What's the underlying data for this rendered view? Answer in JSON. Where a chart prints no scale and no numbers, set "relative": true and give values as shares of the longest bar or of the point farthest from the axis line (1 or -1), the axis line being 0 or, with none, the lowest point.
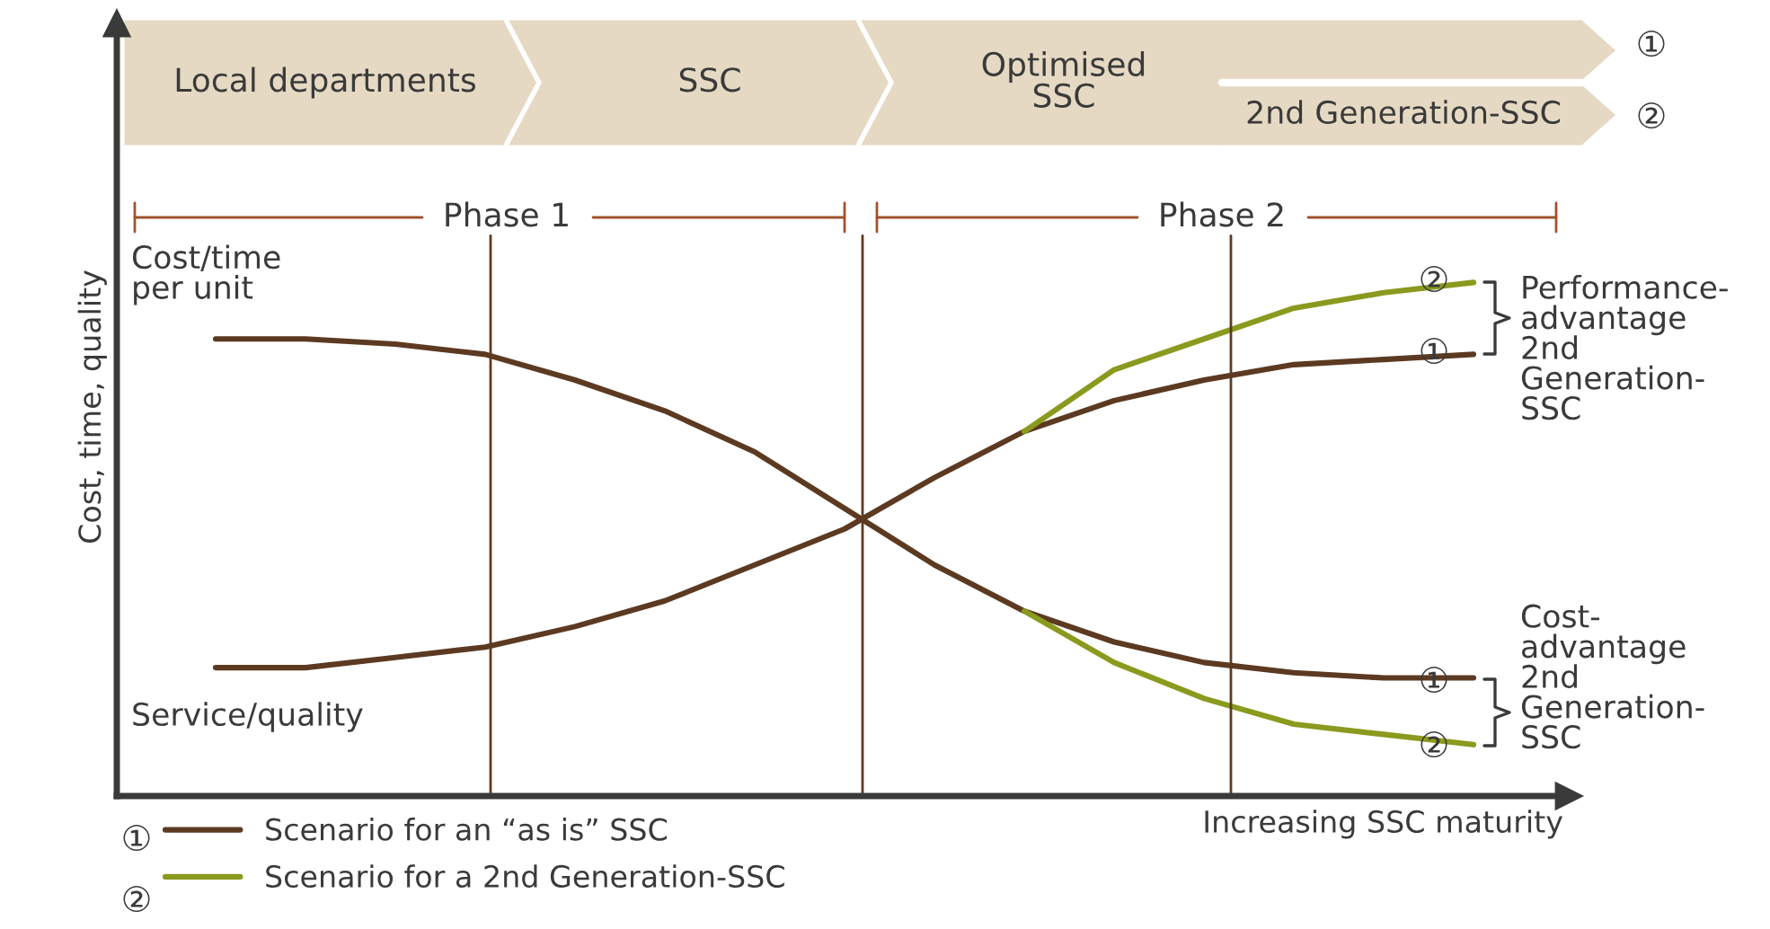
{
  "chart_data": {
    "type": "line",
    "relative": true,
    "legend": "bottom left",
    "marker": "none",
    "line_style": "solid",
    "xlabel": "Increasing SSC maturity",
    "ylabel": "Cost, time, quality",
    "categories": [
      null,
      null,
      null,
      null,
      null,
      null,
      null,
      null,
      null,
      null,
      null,
      null,
      null,
      null,
      null
    ],
    "series": [
      {
        "name": "Scenario for an “as is” SSC",
        "color": "#5c3a21",
        "values": [
          0.89,
          0.89,
          0.88,
          0.86,
          0.81,
          0.75,
          0.67,
          0.56,
          0.45,
          0.36,
          0.3,
          0.26,
          0.24,
          0.23,
          0.23
        ]
      },
      {
        "color": "#5c3a21",
        "values": [
          0.25,
          0.25,
          0.27,
          0.29,
          0.33,
          0.38,
          0.45,
          0.52,
          0.62,
          0.71,
          0.77,
          0.81,
          0.84,
          0.85,
          0.86
        ]
      },
      {
        "name": "Scenario for a 2nd Generation-SSC",
        "color": "#8a9a1e",
        "values": [
          null,
          null,
          null,
          null,
          null,
          null,
          null,
          null,
          null,
          0.71,
          0.83,
          0.89,
          0.95,
          0.98,
          1.0
        ]
      },
      {
        "color": "#8a9a1e",
        "values": [
          null,
          null,
          null,
          null,
          null,
          null,
          null,
          null,
          null,
          0.36,
          0.26,
          0.19,
          0.14,
          0.12,
          0.1
        ]
      }
    ],
    "annotations": [
      "Local departments",
      "SSC",
      "Optimised\nSSC",
      "2nd Generation-SSC",
      "①",
      "②",
      "Phase 1",
      "Phase 2",
      "Cost/time\nper unit",
      "Service/quality",
      "Performance-\nadvantage\n2nd\nGeneration-\nSSC",
      "Cost-\nadvantage\n2nd\nGeneration-\nSSC",
      "①",
      "②",
      "②",
      "①",
      "①",
      "②"
    ]
  }
}
